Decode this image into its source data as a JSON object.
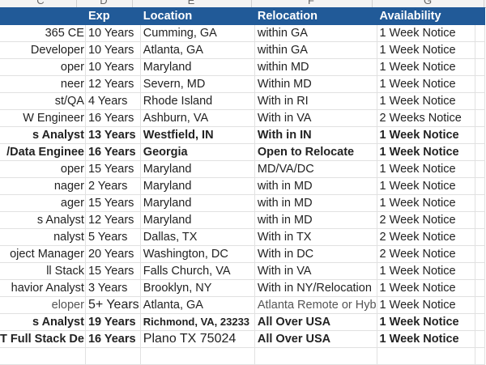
{
  "column_letters": [
    "C",
    "D",
    "E",
    "F",
    "G"
  ],
  "headers": {
    "c": "",
    "exp": "Exp",
    "location": "Location",
    "relocation": "Relocation",
    "availability": "Availability"
  },
  "rows": [
    {
      "role": "365 CE",
      "exp": "10 Years",
      "location": "Cumming, GA",
      "relocation": "within GA",
      "availability": "1 Week Notice"
    },
    {
      "role": "Developer",
      "exp": "10 Years",
      "location": "Atlanta, GA",
      "relocation": "within GA",
      "availability": "1 Week Notice"
    },
    {
      "role": "oper",
      "exp": "10 Years",
      "location": "Maryland",
      "relocation": "within MD",
      "availability": "1 Week Notice"
    },
    {
      "role": "neer",
      "exp": "12 Years",
      "location": "Severn, MD",
      "relocation": "Within MD",
      "availability": "1 Week Notice"
    },
    {
      "role": "st/QA",
      "exp": "4 Years",
      "location": "Rhode Island",
      "relocation": "With in RI",
      "availability": "1 Week Notice"
    },
    {
      "role": "W Engineer",
      "exp": "16 Years",
      "location": "Ashburn, VA",
      "relocation": "With in VA",
      "availability": "2 Weeks Notice"
    },
    {
      "role": "s Analyst",
      "exp": "13 Years",
      "location": "Westfield, IN",
      "relocation": "With in IN",
      "availability": "1 Week Notice",
      "bold": true
    },
    {
      "role": "/Data Enginee",
      "exp": "16 Years",
      "location": "Georgia",
      "relocation": "Open to Relocate",
      "availability": "1 Week Notice",
      "bold": true
    },
    {
      "role": "oper",
      "exp": "15 Years",
      "location": "Maryland",
      "relocation": "MD/VA/DC",
      "availability": "1 Week Notice"
    },
    {
      "role": "nager",
      "exp": "2 Years",
      "location": "Maryland",
      "relocation": "with in MD",
      "availability": "1 Week Notice"
    },
    {
      "role": "ager",
      "exp": "15 Years",
      "location": "Maryland",
      "relocation": "with in MD",
      "availability": "1 Week Notice"
    },
    {
      "role": "s Analyst",
      "exp": "12 Years",
      "location": "Maryland",
      "relocation": "with in MD",
      "availability": "2 Week Notice"
    },
    {
      "role": "nalyst",
      "exp": "5 Years",
      "location": "Dallas, TX",
      "relocation": "With in TX",
      "availability": "2 Week Notice"
    },
    {
      "role": "oject Manager",
      "exp": "20 Years",
      "location": "Washington, DC",
      "relocation": "With in DC",
      "availability": "2 Week Notice"
    },
    {
      "role": "ll Stack",
      "exp": "15 Years",
      "location": "Falls Church, VA",
      "relocation": "With in VA",
      "availability": "1 Week Notice"
    },
    {
      "role": "havior Analyst",
      "exp": "3 Years",
      "location": "Brooklyn, NY",
      "relocation": "With in NY/Relocation",
      "availability": "1 Week Notice"
    },
    {
      "role": "eloper",
      "exp": "5+ Years",
      "location": "Atlanta, GA",
      "relocation": "Atlanta Remote or Hyb",
      "availability": "1 Week Notice"
    },
    {
      "role": "s Analyst",
      "exp": "19 Years",
      "location": "Richmond, VA, 23233",
      "relocation": "All Over USA",
      "availability": "1 Week Notice",
      "bold": true
    },
    {
      "role": "T Full Stack De",
      "exp": "16 Years",
      "location": "Plano TX 75024",
      "relocation": "All Over USA",
      "availability": "1 Week Notice",
      "bold": true
    }
  ]
}
